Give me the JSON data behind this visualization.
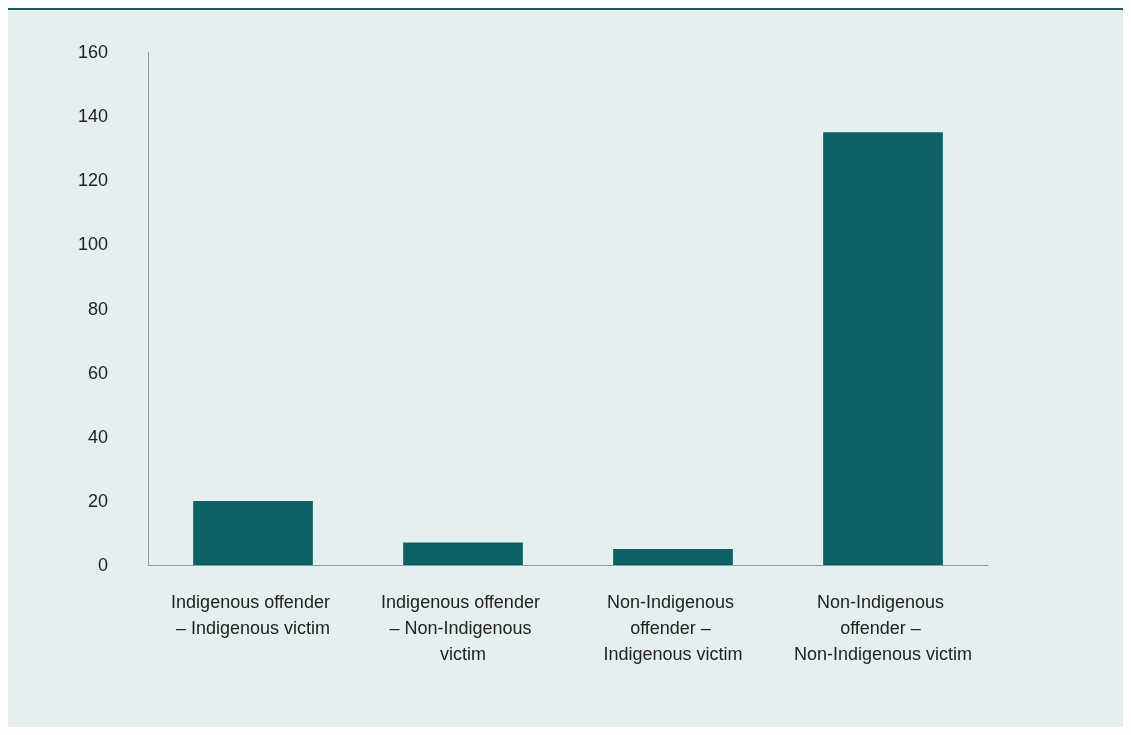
{
  "chart_data": {
    "type": "bar",
    "categories": [
      "Indigenous offender – Indigenous victim",
      "Indigenous offender – Non-Indigenous victim",
      "Non-Indigenous offender – Indigenous victim",
      "Non-Indigenous offender – Non-Indigenous victim"
    ],
    "values": [
      20,
      7,
      5,
      135
    ],
    "color": "#0b6164",
    "ylim": [
      0,
      160
    ],
    "yticks": [
      0,
      20,
      40,
      60,
      80,
      100,
      120,
      140,
      160
    ],
    "grid": false
  }
}
